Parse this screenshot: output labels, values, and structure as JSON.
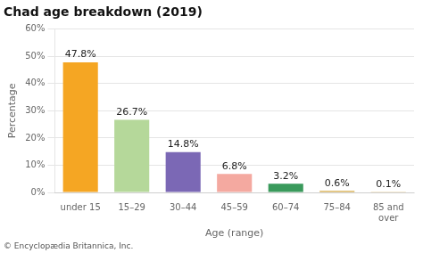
{
  "chart_data": {
    "type": "bar",
    "title": "Chad age breakdown (2019)",
    "categories": [
      "under 15",
      "15–29",
      "30–44",
      "45–59",
      "60–74",
      "75–84",
      "85 and\nover"
    ],
    "values": [
      47.8,
      26.7,
      14.8,
      6.8,
      3.2,
      0.6,
      0.1
    ],
    "value_labels": [
      "47.8%",
      "26.7%",
      "14.8%",
      "6.8%",
      "3.2%",
      "0.6%",
      "0.1%"
    ],
    "data_labels": true,
    "colors": [
      "#f5a623",
      "#b5d89a",
      "#7b68b5",
      "#f4a9a0",
      "#3a9a5c",
      "#d4a843",
      "#d4a843"
    ],
    "xlabel": "Age (range)",
    "ylabel": "Percentage",
    "ylim": [
      0,
      60
    ],
    "yticks": [
      {
        "value": 0,
        "label": "0%"
      },
      {
        "value": 10,
        "label": "10%"
      },
      {
        "value": 20,
        "label": "20%"
      },
      {
        "value": 30,
        "label": "30%"
      },
      {
        "value": 40,
        "label": "40%"
      },
      {
        "value": 50,
        "label": "50%"
      },
      {
        "value": 60,
        "label": "60%"
      }
    ],
    "grid": true,
    "footer": "© Encyclopædia Britannica, Inc."
  }
}
